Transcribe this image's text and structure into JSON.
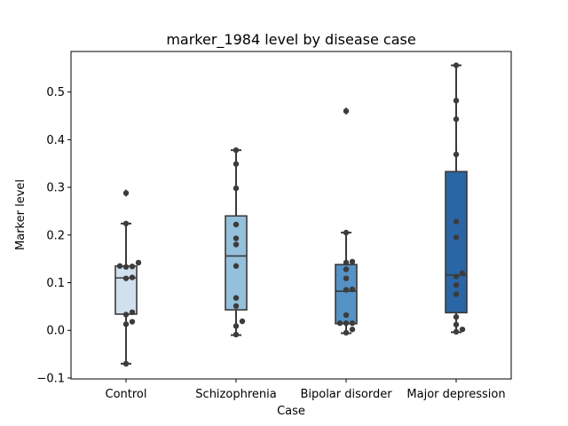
{
  "chart_data": {
    "type": "box",
    "title": "marker_1984 level by disease case",
    "xlabel": "Case",
    "ylabel": "Marker level",
    "ylim": [
      -0.102,
      0.585
    ],
    "yticks": [
      -0.1,
      0.0,
      0.1,
      0.2,
      0.3,
      0.4,
      0.5
    ],
    "ytick_labels": [
      "−0.1",
      "0.0",
      "0.1",
      "0.2",
      "0.3",
      "0.4",
      "0.5"
    ],
    "grid": false,
    "categories": [
      "Control",
      "Schizophrenia",
      "Bipolar disorder",
      "Major depression"
    ],
    "colors": [
      "#d1e0ee",
      "#94c0db",
      "#5592c5",
      "#2a66a5"
    ],
    "point_color": "#3c3c3c",
    "line_color": "#3a3a3a",
    "boxes": [
      {
        "q1": 0.034,
        "median": 0.11,
        "q3": 0.135,
        "whisker_low": -0.07,
        "whisker_high": 0.224,
        "outliers": [
          0.288
        ]
      },
      {
        "q1": 0.043,
        "median": 0.156,
        "q3": 0.24,
        "whisker_low": -0.01,
        "whisker_high": 0.378,
        "outliers": []
      },
      {
        "q1": 0.014,
        "median": 0.082,
        "q3": 0.138,
        "whisker_low": -0.006,
        "whisker_high": 0.205,
        "outliers": [
          0.46
        ]
      },
      {
        "q1": 0.037,
        "median": 0.116,
        "q3": 0.333,
        "whisker_low": -0.004,
        "whisker_high": 0.556,
        "outliers": []
      }
    ],
    "points": [
      [
        0.288,
        0.224,
        0.142,
        0.135,
        0.134,
        0.133,
        0.111,
        0.109,
        0.038,
        0.033,
        0.018,
        0.013,
        -0.07
      ],
      [
        0.378,
        0.349,
        0.298,
        0.222,
        0.193,
        0.18,
        0.135,
        0.068,
        0.051,
        0.019,
        0.009,
        -0.009
      ],
      [
        0.46,
        0.205,
        0.144,
        0.142,
        0.128,
        0.109,
        0.086,
        0.085,
        0.032,
        0.015,
        0.015,
        0.015,
        0.002,
        -0.005
      ],
      [
        0.556,
        0.482,
        0.443,
        0.369,
        0.228,
        0.195,
        0.12,
        0.113,
        0.095,
        0.076,
        0.028,
        0.012,
        0.002,
        -0.003
      ]
    ]
  }
}
